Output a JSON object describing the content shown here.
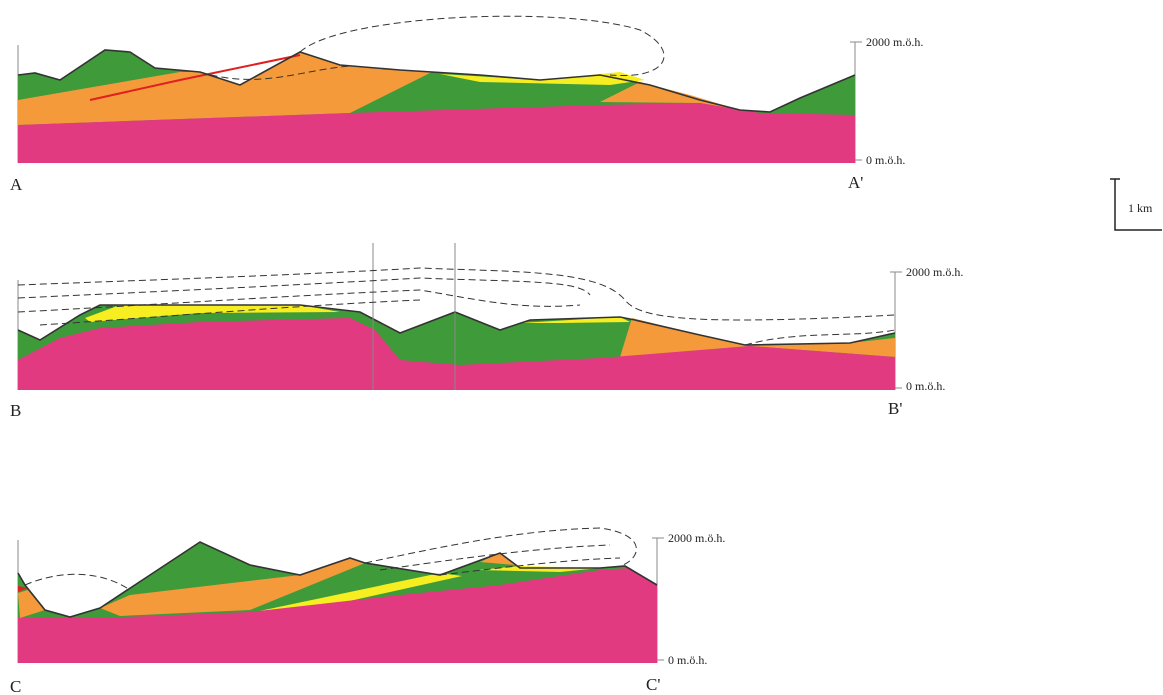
{
  "sections": [
    {
      "start": "A",
      "end": "A'",
      "top_label": "2000 m.ö.h.",
      "bottom_label": "0 m.ö.h."
    },
    {
      "start": "B",
      "end": "B'",
      "top_label": "2000 m.ö.h.",
      "bottom_label": "0 m.ö.h."
    },
    {
      "start": "C",
      "end": "C'",
      "top_label": "2000 m.ö.h.",
      "bottom_label": "0 m.ö.h."
    }
  ],
  "scale_bar": {
    "label": "1 km"
  }
}
